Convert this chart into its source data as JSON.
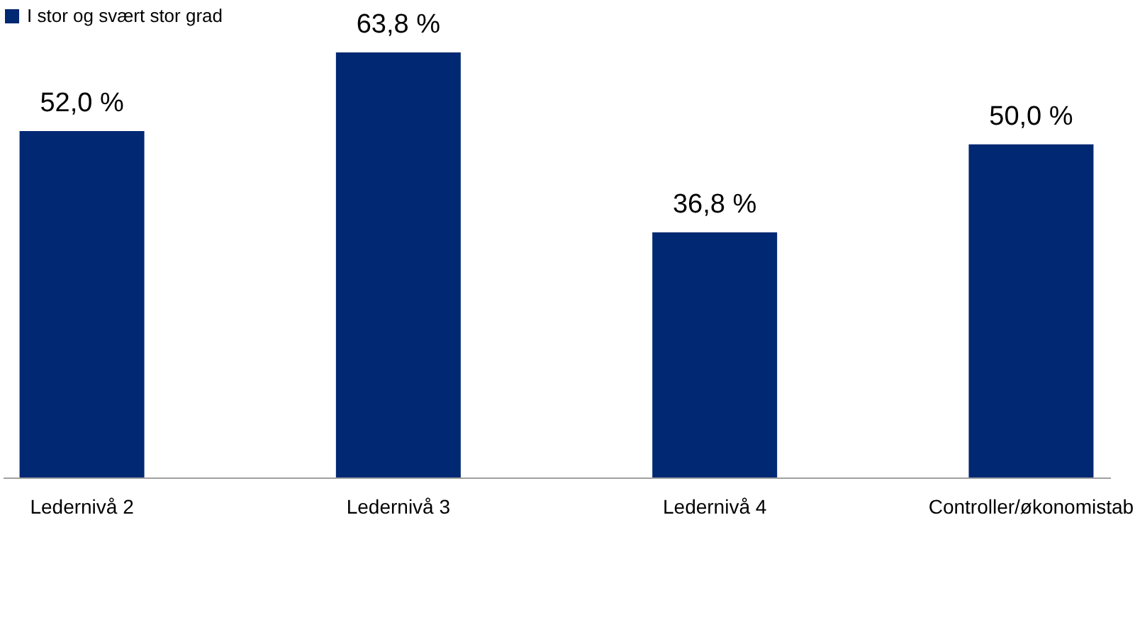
{
  "chart_data": {
    "type": "bar",
    "categories": [
      "Ledernivå 2",
      "Ledernivå 3",
      "Ledernivå 4",
      "Controller/økonomistab"
    ],
    "series": [
      {
        "name": "I stor og svært stor grad",
        "color": "#002873",
        "values": [
          52.0,
          63.8,
          36.8,
          50.0
        ],
        "value_labels": [
          "52,0 %",
          "63,8 %",
          "36,8 %",
          "50,0 %"
        ]
      }
    ],
    "legend": "top",
    "grid": false,
    "tick_labels": "x"
  }
}
